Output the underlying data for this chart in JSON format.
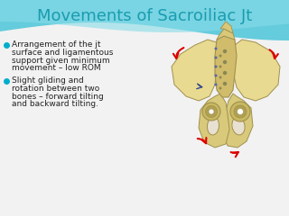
{
  "title": "Movements of Sacroiliac Jt",
  "title_color": "#1A9CB0",
  "title_fontsize": 13,
  "background_color": "#FFFFFF",
  "header_color1": "#6DCFDF",
  "header_color2": "#A8E4EF",
  "bullet_color": "#00AECC",
  "bullet1_lines": [
    "Arrangement of the jt",
    "surface and ligamentous",
    "support given minimum",
    "movement – low ROM"
  ],
  "bullet2_lines": [
    "Slight gliding and",
    "rotation between two",
    "bones – forward tilting",
    "and backward tilting."
  ],
  "text_color": "#222222",
  "text_fontsize": 6.5,
  "pelvis_bone_color": "#D8CA7A",
  "pelvis_bone_light": "#E8DA90",
  "pelvis_edge_color": "#A09050",
  "arrow_color": "#DD0000",
  "small_arrow_color": "#334488"
}
